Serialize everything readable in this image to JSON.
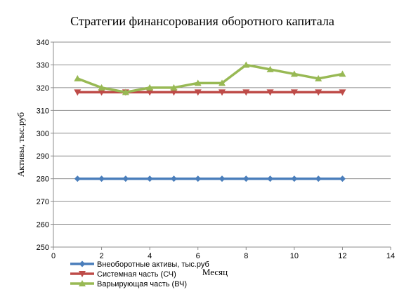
{
  "chart_data": {
    "type": "line",
    "title": "Стратегии финансорования оборотного капитала",
    "xlabel": "Месяц",
    "ylabel": "Активы, тыс.руб",
    "xlim": [
      0,
      14
    ],
    "ylim": [
      250,
      340
    ],
    "xticks": [
      0,
      2,
      4,
      6,
      8,
      10,
      12,
      14
    ],
    "yticks": [
      250,
      260,
      270,
      280,
      290,
      300,
      310,
      320,
      330,
      340
    ],
    "grid": "horizontal",
    "legend_position": "bottom-left",
    "x": [
      1,
      2,
      3,
      4,
      5,
      6,
      7,
      8,
      9,
      10,
      11,
      12
    ],
    "series": [
      {
        "name": "Внеоборотные активы, тыс.руб",
        "color": "#4a7ebb",
        "marker": "diamond",
        "values": [
          280,
          280,
          280,
          280,
          280,
          280,
          280,
          280,
          280,
          280,
          280,
          280
        ]
      },
      {
        "name": "Системная часть (СЧ)",
        "color": "#be4b48",
        "marker": "triangle-down",
        "values": [
          318,
          318,
          318,
          318,
          318,
          318,
          318,
          318,
          318,
          318,
          318,
          318
        ]
      },
      {
        "name": "Варьирующая часть (ВЧ)",
        "color": "#98b954",
        "marker": "triangle-up",
        "values": [
          324,
          320,
          318,
          320,
          320,
          322,
          322,
          330,
          328,
          326,
          324,
          326
        ]
      }
    ]
  }
}
